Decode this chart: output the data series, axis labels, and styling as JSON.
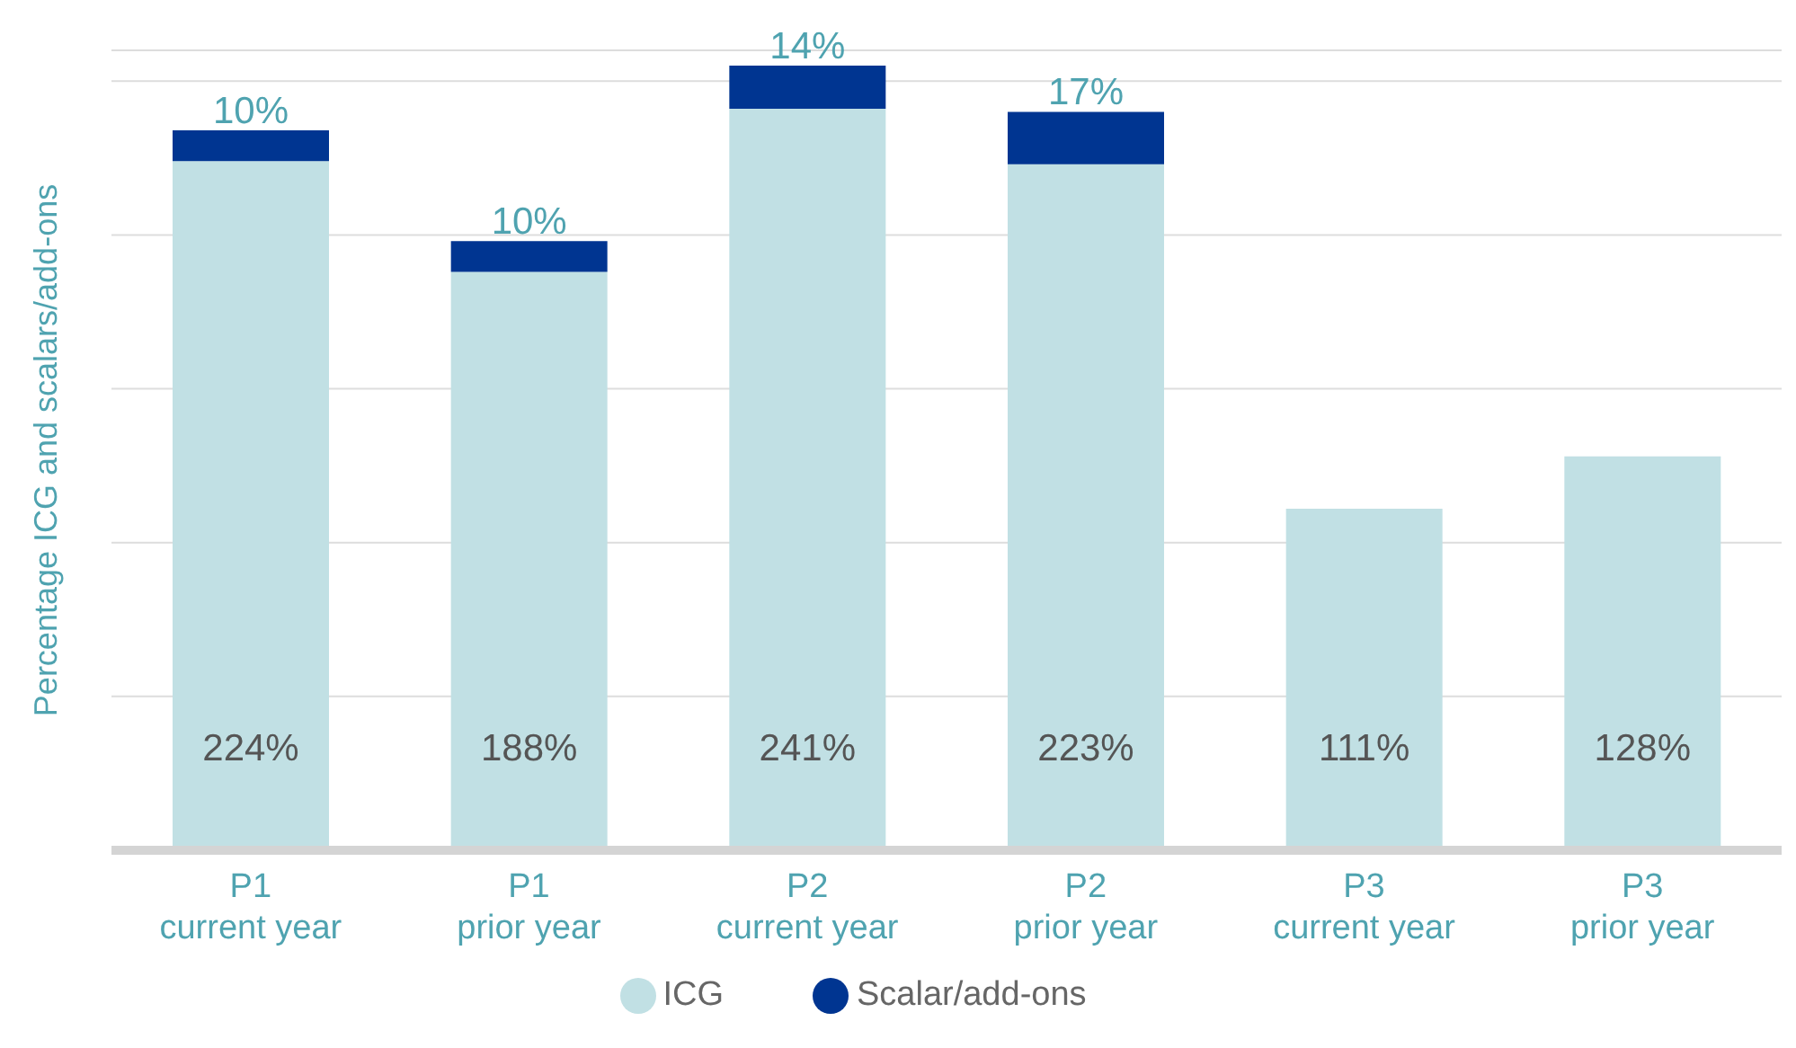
{
  "chart_data": {
    "type": "bar",
    "stacked": true,
    "ylabel": "Percentage ICG and scalars/add-ons",
    "categories": [
      "P1\ncurrent year",
      "P1\nprior year",
      "P2\ncurrent year",
      "P2\nprior year",
      "P3\ncurrent year",
      "P3\nprior year"
    ],
    "series": [
      {
        "name": "ICG",
        "color": "#c1e0e4",
        "values": [
          224,
          188,
          241,
          223,
          111,
          128
        ],
        "value_labels": [
          "224%",
          "188%",
          "241%",
          "223%",
          "111%",
          "128%"
        ]
      },
      {
        "name": "Scalar/add-ons",
        "color": "#003591",
        "values": [
          10,
          10,
          14,
          17,
          null,
          null
        ],
        "value_labels": [
          "10%",
          "10%",
          "14%",
          "17%",
          null,
          null
        ]
      }
    ],
    "ylim": [
      0,
      260
    ],
    "yticks": [
      {
        "value": 0,
        "label": null
      },
      {
        "value": 50,
        "label": null
      },
      {
        "value": 100,
        "label": null
      },
      {
        "value": 150,
        "label": null
      },
      {
        "value": 200,
        "label": null
      },
      {
        "value": 250,
        "label": null
      }
    ],
    "tick_labels": "x",
    "grid": "y",
    "legend": "bottom"
  }
}
